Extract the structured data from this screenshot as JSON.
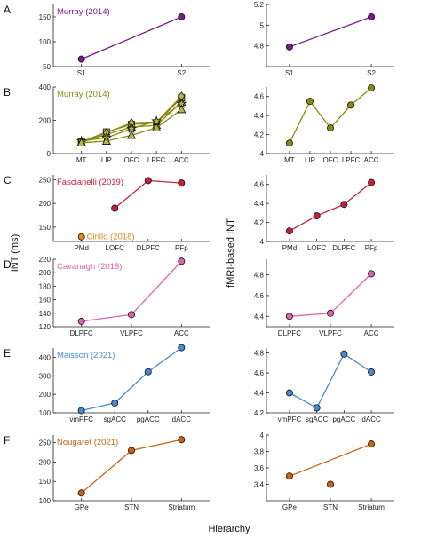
{
  "figure": {
    "ylabel_left": "INT (ms)",
    "ylabel_right": "fMRI-based INT",
    "xlabel": "Hierarchy"
  },
  "chart_data": [
    {
      "id": "A-left",
      "row": "A",
      "type": "line",
      "title": "Murray (2014)",
      "color": "#7b1c8c",
      "categories": [
        "S1",
        "S2"
      ],
      "ylim": [
        50,
        175
      ],
      "yticks": [
        50,
        100,
        150
      ],
      "series": [
        {
          "values": [
            65,
            150
          ],
          "marker": "o"
        }
      ]
    },
    {
      "id": "A-right",
      "row": "A",
      "type": "line",
      "title": "",
      "color": "#7b1c8c",
      "categories": [
        "S1",
        "S2"
      ],
      "ylim": [
        4.6,
        5.2
      ],
      "yticks": [
        4.8,
        5,
        5.2
      ],
      "series": [
        {
          "values": [
            4.79,
            5.08
          ],
          "marker": "o"
        }
      ]
    },
    {
      "id": "B-left",
      "row": "B",
      "type": "line",
      "title": "Murray (2014)",
      "color": "#8a8a12",
      "categories": [
        "MT",
        "LIP",
        "OFC",
        "LPFC",
        "ACC"
      ],
      "ylim": [
        0,
        400
      ],
      "yticks": [
        0,
        200,
        400
      ],
      "series": [
        {
          "values": [
            70,
            130,
            175,
            185,
            335
          ],
          "marker": "square"
        },
        {
          "values": [
            68,
            115,
            160,
            170,
            310
          ],
          "marker": "triangle"
        },
        {
          "values": [
            72,
            125,
            185,
            190,
            345
          ],
          "marker": "diamond"
        },
        {
          "values": [
            75,
            95,
            150,
            195,
            300
          ],
          "marker": "star"
        },
        {
          "values": [
            65,
            75,
            110,
            155,
            265
          ],
          "marker": "triangle"
        }
      ]
    },
    {
      "id": "B-right",
      "row": "B",
      "type": "line",
      "title": "",
      "color": "#8a8a12",
      "categories": [
        "MT",
        "LIP",
        "OFC",
        "LPFC",
        "ACC"
      ],
      "ylim": [
        4,
        4.7
      ],
      "yticks": [
        4,
        4.2,
        4.4,
        4.6
      ],
      "series": [
        {
          "values": [
            4.11,
            4.55,
            4.27,
            4.51,
            4.69
          ],
          "marker": "o"
        }
      ]
    },
    {
      "id": "C-left",
      "row": "C",
      "type": "line",
      "title": "Fascianelli (2019)",
      "color": "#c42040",
      "categories": [
        "PMd",
        "LOFC",
        "DLPFC",
        "PFp"
      ],
      "ylim": [
        120,
        260
      ],
      "yticks": [
        150,
        200,
        250
      ],
      "series": [
        {
          "values": [
            null,
            190,
            248,
            243
          ],
          "marker": "o"
        }
      ],
      "extra": {
        "label": "Cirillo (2018)",
        "color": "#e08a20",
        "category": "PMd",
        "value": 130
      }
    },
    {
      "id": "C-right",
      "row": "C",
      "type": "line",
      "title": "",
      "color": "#c42040",
      "categories": [
        "PMd",
        "LOFC",
        "DLPFC",
        "PFp"
      ],
      "ylim": [
        4,
        4.7
      ],
      "yticks": [
        4,
        4.2,
        4.4,
        4.6
      ],
      "series": [
        {
          "values": [
            4.11,
            4.27,
            4.39,
            4.62
          ],
          "marker": "o"
        }
      ]
    },
    {
      "id": "D-left",
      "row": "D",
      "type": "line",
      "title": "Cavanagh (2018)",
      "color": "#e060b0",
      "categories": [
        "DLPFC",
        "VLPFC",
        "ACC"
      ],
      "ylim": [
        120,
        220
      ],
      "yticks": [
        120,
        140,
        160,
        180,
        200,
        220
      ],
      "series": [
        {
          "values": [
            128,
            138,
            217
          ],
          "marker": "o"
        }
      ]
    },
    {
      "id": "D-right",
      "row": "D",
      "type": "line",
      "title": "",
      "color": "#e060b0",
      "categories": [
        "DLPFC",
        "VLPFC",
        "ACC"
      ],
      "ylim": [
        4.3,
        4.95
      ],
      "yticks": [
        4.4,
        4.6,
        4.8
      ],
      "series": [
        {
          "values": [
            4.4,
            4.43,
            4.81
          ],
          "marker": "o"
        }
      ]
    },
    {
      "id": "E-left",
      "row": "E",
      "type": "line",
      "title": "Maisson (2021)",
      "color": "#4a88cc",
      "categories": [
        "vmPFC",
        "sgACC",
        "pgACC",
        "dACC"
      ],
      "ylim": [
        100,
        450
      ],
      "yticks": [
        100,
        200,
        300,
        400
      ],
      "series": [
        {
          "values": [
            112,
            153,
            322,
            452
          ],
          "marker": "o"
        }
      ]
    },
    {
      "id": "E-right",
      "row": "E",
      "type": "line",
      "title": "",
      "color": "#4a88cc",
      "categories": [
        "vmPFC",
        "sgACC",
        "pgACC",
        "dACC"
      ],
      "ylim": [
        4.2,
        4.85
      ],
      "yticks": [
        4.2,
        4.4,
        4.6,
        4.8
      ],
      "series": [
        {
          "values": [
            4.4,
            4.25,
            4.79,
            4.61
          ],
          "marker": "o"
        }
      ]
    },
    {
      "id": "F-left",
      "row": "F",
      "type": "line",
      "title": "Nougaret (2021)",
      "color": "#c86414",
      "categories": [
        "GPe",
        "STN",
        "Striatum"
      ],
      "ylim": [
        100,
        270
      ],
      "yticks": [
        100,
        150,
        200,
        250
      ],
      "series": [
        {
          "values": [
            120,
            230,
            258
          ],
          "marker": "o"
        }
      ]
    },
    {
      "id": "F-right",
      "row": "F",
      "type": "line",
      "title": "",
      "color": "#c86414",
      "categories": [
        "GPe",
        "STN",
        "Striatum"
      ],
      "ylim": [
        3.2,
        4.0
      ],
      "yticks": [
        3.4,
        3.6,
        3.8,
        4
      ],
      "series": [
        {
          "values": [
            3.5,
            null,
            3.89
          ],
          "marker": "o"
        }
      ],
      "extra": {
        "label": "",
        "color": "#c86414",
        "category": "STN",
        "value": 3.4
      }
    }
  ]
}
